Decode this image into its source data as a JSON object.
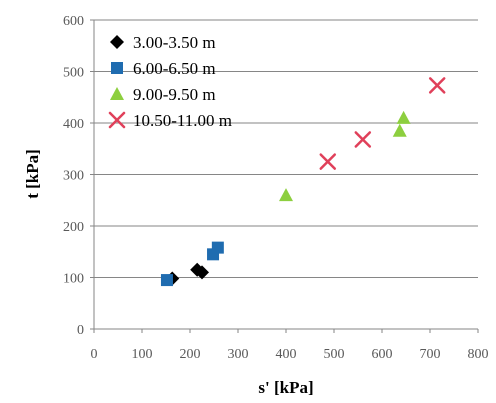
{
  "chart_data": {
    "type": "scatter",
    "xlabel": "s' [kPa]",
    "ylabel": "t [kPa]",
    "xlim": [
      0,
      800
    ],
    "ylim": [
      0,
      600
    ],
    "x_ticks": [
      "0",
      "100",
      "200",
      "300",
      "400",
      "500",
      "600",
      "700",
      "800"
    ],
    "y_ticks": [
      "0",
      "100",
      "200",
      "300",
      "400",
      "500",
      "600"
    ],
    "grid": "horizontal major gridlines",
    "legend_position": "top-left",
    "series": [
      {
        "name": "3.00-3.50 m",
        "marker": "diamond",
        "color": "#000000",
        "points": [
          [
            163,
            98
          ],
          [
            215,
            115
          ],
          [
            225,
            110
          ]
        ]
      },
      {
        "name": "6.00-6.50 m",
        "marker": "square",
        "color": "#1F6CB0",
        "points": [
          [
            152,
            95
          ],
          [
            248,
            145
          ],
          [
            258,
            158
          ]
        ]
      },
      {
        "name": "9.00-9.50 m",
        "marker": "triangle",
        "color": "#8DCF3F",
        "points": [
          [
            400,
            260
          ],
          [
            637,
            385
          ],
          [
            645,
            410
          ]
        ]
      },
      {
        "name": "10.50-11.00 m",
        "marker": "x",
        "color": "#E0405A",
        "points": [
          [
            487,
            325
          ],
          [
            560,
            368
          ],
          [
            715,
            473
          ]
        ]
      }
    ]
  }
}
